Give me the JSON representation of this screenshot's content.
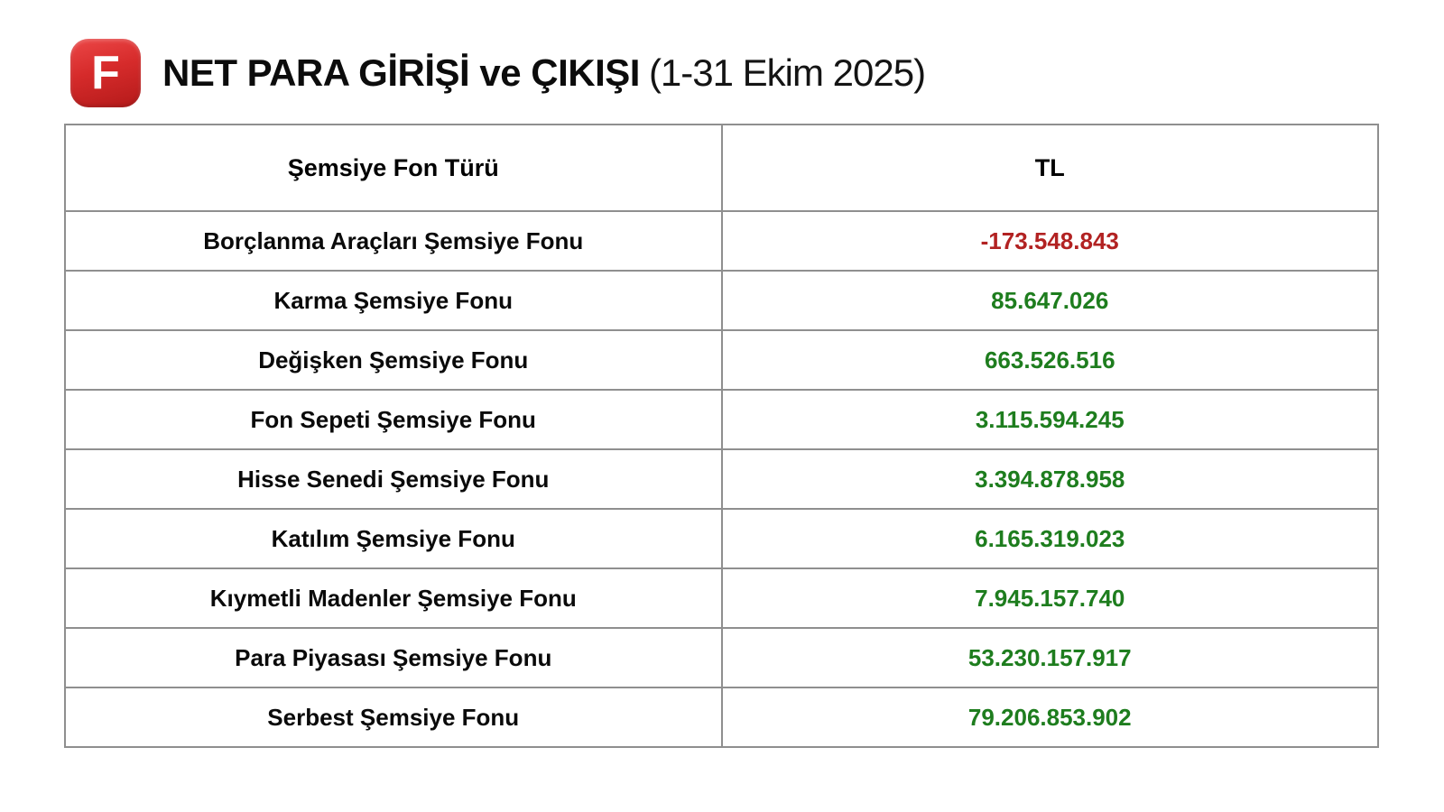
{
  "header": {
    "logo_letter": "F",
    "title": "NET PARA GİRİŞİ ve ÇIKIŞI",
    "subtitle": "(1-31 Ekim 2025)"
  },
  "table": {
    "columns": [
      "Şemsiye Fon Türü",
      "TL"
    ],
    "rows": [
      {
        "label": "Borçlanma Araçları Şemsiye Fonu",
        "value": "-173.548.843",
        "direction": "negative"
      },
      {
        "label": "Karma Şemsiye Fonu",
        "value": "85.647.026",
        "direction": "positive"
      },
      {
        "label": "Değişken Şemsiye Fonu",
        "value": "663.526.516",
        "direction": "positive"
      },
      {
        "label": "Fon Sepeti Şemsiye Fonu",
        "value": "3.115.594.245",
        "direction": "positive"
      },
      {
        "label": "Hisse Senedi Şemsiye Fonu",
        "value": "3.394.878.958",
        "direction": "positive"
      },
      {
        "label": "Katılım Şemsiye Fonu",
        "value": "6.165.319.023",
        "direction": "positive"
      },
      {
        "label": "Kıymetli Madenler Şemsiye Fonu",
        "value": "7.945.157.740",
        "direction": "positive"
      },
      {
        "label": "Para Piyasası Şemsiye Fonu",
        "value": "53.230.157.917",
        "direction": "positive"
      },
      {
        "label": "Serbest Şemsiye Fonu",
        "value": "79.206.853.902",
        "direction": "positive"
      }
    ]
  },
  "colors": {
    "positive": "#1e7d1e",
    "negative": "#b22222",
    "logo_red": "#d62b2b",
    "border": "#8f8f8f"
  },
  "chart_data": {
    "type": "table",
    "title": "NET PARA GİRİŞİ ve ÇIKIŞI (1-31 Ekim 2025)",
    "columns": [
      "Şemsiye Fon Türü",
      "TL"
    ],
    "categories": [
      "Borçlanma Araçları Şemsiye Fonu",
      "Karma Şemsiye Fonu",
      "Değişken Şemsiye Fonu",
      "Fon Sepeti Şemsiye Fonu",
      "Hisse Senedi Şemsiye Fonu",
      "Katılım Şemsiye Fonu",
      "Kıymetli Madenler Şemsiye Fonu",
      "Para Piyasası Şemsiye Fonu",
      "Serbest Şemsiye Fonu"
    ],
    "values": [
      -173548843,
      85647026,
      663526516,
      3115594245,
      3394878958,
      6165319023,
      7945157740,
      53230157917,
      79206853902
    ],
    "value_unit": "TL",
    "negative_color": "#b22222",
    "positive_color": "#1e7d1e"
  }
}
